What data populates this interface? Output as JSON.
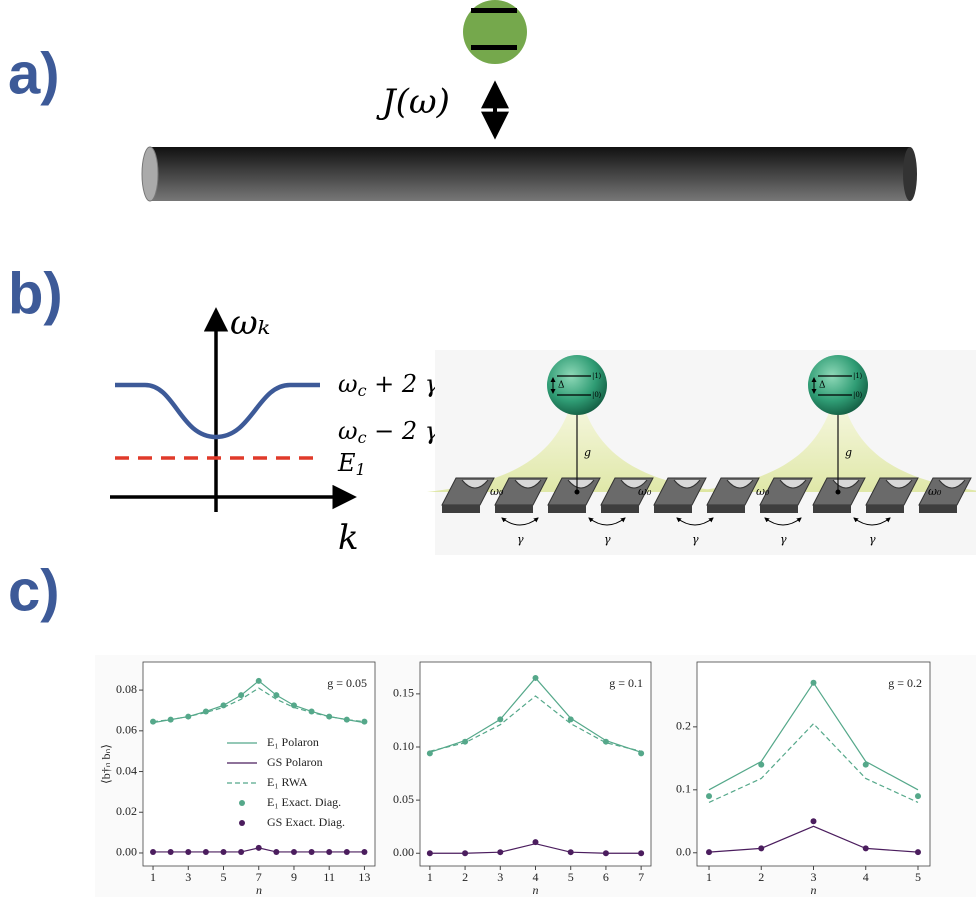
{
  "diagram": {
    "panel_labels": [
      "a)",
      "b)",
      "c)"
    ],
    "coupling": "J(ω)",
    "dispersion": {
      "y_axis": "ωₖ",
      "x_axis": "k",
      "upper": {
        "symbol": "ω",
        "sub": "c",
        "rest": " + 2 γ"
      },
      "lower": {
        "symbol": "ω",
        "sub": "c",
        "rest": " − 2 γ"
      },
      "level": {
        "symbol": "E",
        "sub": "1"
      }
    },
    "lattice": {
      "sites": [
        "ω₀",
        "ω₀",
        "ω₀",
        "ω₀"
      ],
      "hoppings": [
        "γ",
        "γ",
        "γ",
        "γ",
        "γ"
      ],
      "couplings": [
        "g",
        "g"
      ],
      "atoms": [
        {
          "excited": "|1⟩",
          "ground": "|0⟩",
          "gap": "Δ"
        },
        {
          "excited": "|1⟩",
          "ground": "|0⟩",
          "gap": "Δ"
        }
      ]
    }
  },
  "chart_data": [
    {
      "type": "line",
      "annotation": "g = 0.05",
      "x_label": "n",
      "y_label": "⟨b†ₙ bₙ⟩",
      "x": [
        1,
        2,
        3,
        4,
        5,
        6,
        7,
        8,
        9,
        10,
        11,
        12,
        13
      ],
      "xlim": [
        0.43,
        13.6
      ],
      "xticks": [
        1,
        3,
        5,
        7,
        9,
        11,
        13
      ],
      "ylim": [
        -0.0064,
        0.0938
      ],
      "yticks": [
        {
          "value": 0,
          "label": "0.00"
        },
        0.02,
        0.04,
        0.06,
        0.08
      ],
      "legend": "center-right",
      "series": [
        {
          "name": "E₁ Polaron",
          "color": "#55a88a",
          "style": "solid",
          "values": [
            0.064,
            0.0655,
            0.067,
            0.0695,
            0.0725,
            0.0775,
            0.0845,
            0.0775,
            0.0725,
            0.0695,
            0.067,
            0.0655,
            0.064
          ]
        },
        {
          "name": "GS Polaron",
          "color": "#4b1d5e",
          "style": "solid",
          "values": [
            0.0005,
            0.0005,
            0.0005,
            0.0005,
            0.0005,
            0.0005,
            0.0025,
            0.0005,
            0.0005,
            0.0005,
            0.0005,
            0.0005,
            0.0005
          ]
        },
        {
          "name": "E₁ RWA",
          "color": "#55a88a",
          "style": "dashed",
          "values": [
            0.0645,
            0.0655,
            0.067,
            0.069,
            0.0715,
            0.0755,
            0.081,
            0.0755,
            0.0715,
            0.069,
            0.067,
            0.0655,
            0.0645
          ]
        },
        {
          "name": "E₁ Exact. Diag.",
          "color": "#55a88a",
          "style": "markers",
          "values": [
            0.0645,
            0.0655,
            0.067,
            0.0695,
            0.0725,
            0.0775,
            0.0845,
            0.0775,
            0.0725,
            0.0695,
            0.067,
            0.0655,
            0.0645
          ]
        },
        {
          "name": "GS Exact. Diag.",
          "color": "#4b1d5e",
          "style": "markers",
          "values": [
            0.0005,
            0.0005,
            0.0005,
            0.0005,
            0.0005,
            0.0005,
            0.0025,
            0.0005,
            0.0005,
            0.0005,
            0.0005,
            0.0005,
            0.0005
          ]
        }
      ]
    },
    {
      "type": "line",
      "annotation": "g = 0.1",
      "x_label": "n",
      "x": [
        1,
        2,
        3,
        4,
        5,
        6,
        7
      ],
      "xlim": [
        0.72,
        7.28
      ],
      "xticks": [
        1,
        2,
        3,
        4,
        5,
        6,
        7
      ],
      "ylim": [
        -0.012,
        0.18
      ],
      "yticks": [
        {
          "value": 0,
          "label": "0.00"
        },
        0.05,
        {
          "value": 0.1,
          "label": "0.10"
        },
        0.15
      ],
      "series": [
        {
          "color": "#55a88a",
          "style": "solid",
          "values": [
            0.095,
            0.106,
            0.126,
            0.165,
            0.127,
            0.106,
            0.095
          ]
        },
        {
          "color": "#4b1d5e",
          "style": "solid",
          "values": [
            0,
            0,
            0.001,
            0.009,
            0.001,
            0,
            0
          ]
        },
        {
          "color": "#55a88a",
          "style": "dashed",
          "values": [
            0.096,
            0.104,
            0.121,
            0.148,
            0.122,
            0.104,
            0.096
          ]
        },
        {
          "color": "#55a88a",
          "style": "markers",
          "values": [
            0.094,
            0.105,
            0.126,
            0.165,
            0.126,
            0.105,
            0.094
          ]
        },
        {
          "color": "#4b1d5e",
          "style": "markers",
          "values": [
            0,
            0,
            0.001,
            0.0105,
            0.001,
            0,
            0
          ]
        }
      ]
    },
    {
      "type": "line",
      "annotation": "g = 0.2",
      "x_label": "n",
      "x": [
        1,
        2,
        3,
        4,
        5
      ],
      "xlim": [
        0.77,
        5.23
      ],
      "xticks": [
        1,
        2,
        3,
        4,
        5
      ],
      "ylim": [
        -0.021,
        0.303
      ],
      "yticks": [
        {
          "value": 0,
          "label": "0.0"
        },
        0.1,
        0.2
      ],
      "series": [
        {
          "color": "#55a88a",
          "style": "solid",
          "values": [
            0.1,
            0.145,
            0.27,
            0.145,
            0.1
          ]
        },
        {
          "color": "#4b1d5e",
          "style": "solid",
          "values": [
            0.001,
            0.007,
            0.042,
            0.007,
            0.001
          ]
        },
        {
          "color": "#55a88a",
          "style": "dashed",
          "values": [
            0.08,
            0.118,
            0.205,
            0.118,
            0.08
          ]
        },
        {
          "color": "#55a88a",
          "style": "markers",
          "values": [
            0.09,
            0.14,
            0.27,
            0.14,
            0.09
          ]
        },
        {
          "color": "#4b1d5e",
          "style": "markers",
          "values": [
            0.001,
            0.007,
            0.05,
            0.007,
            0.001
          ]
        }
      ]
    }
  ]
}
